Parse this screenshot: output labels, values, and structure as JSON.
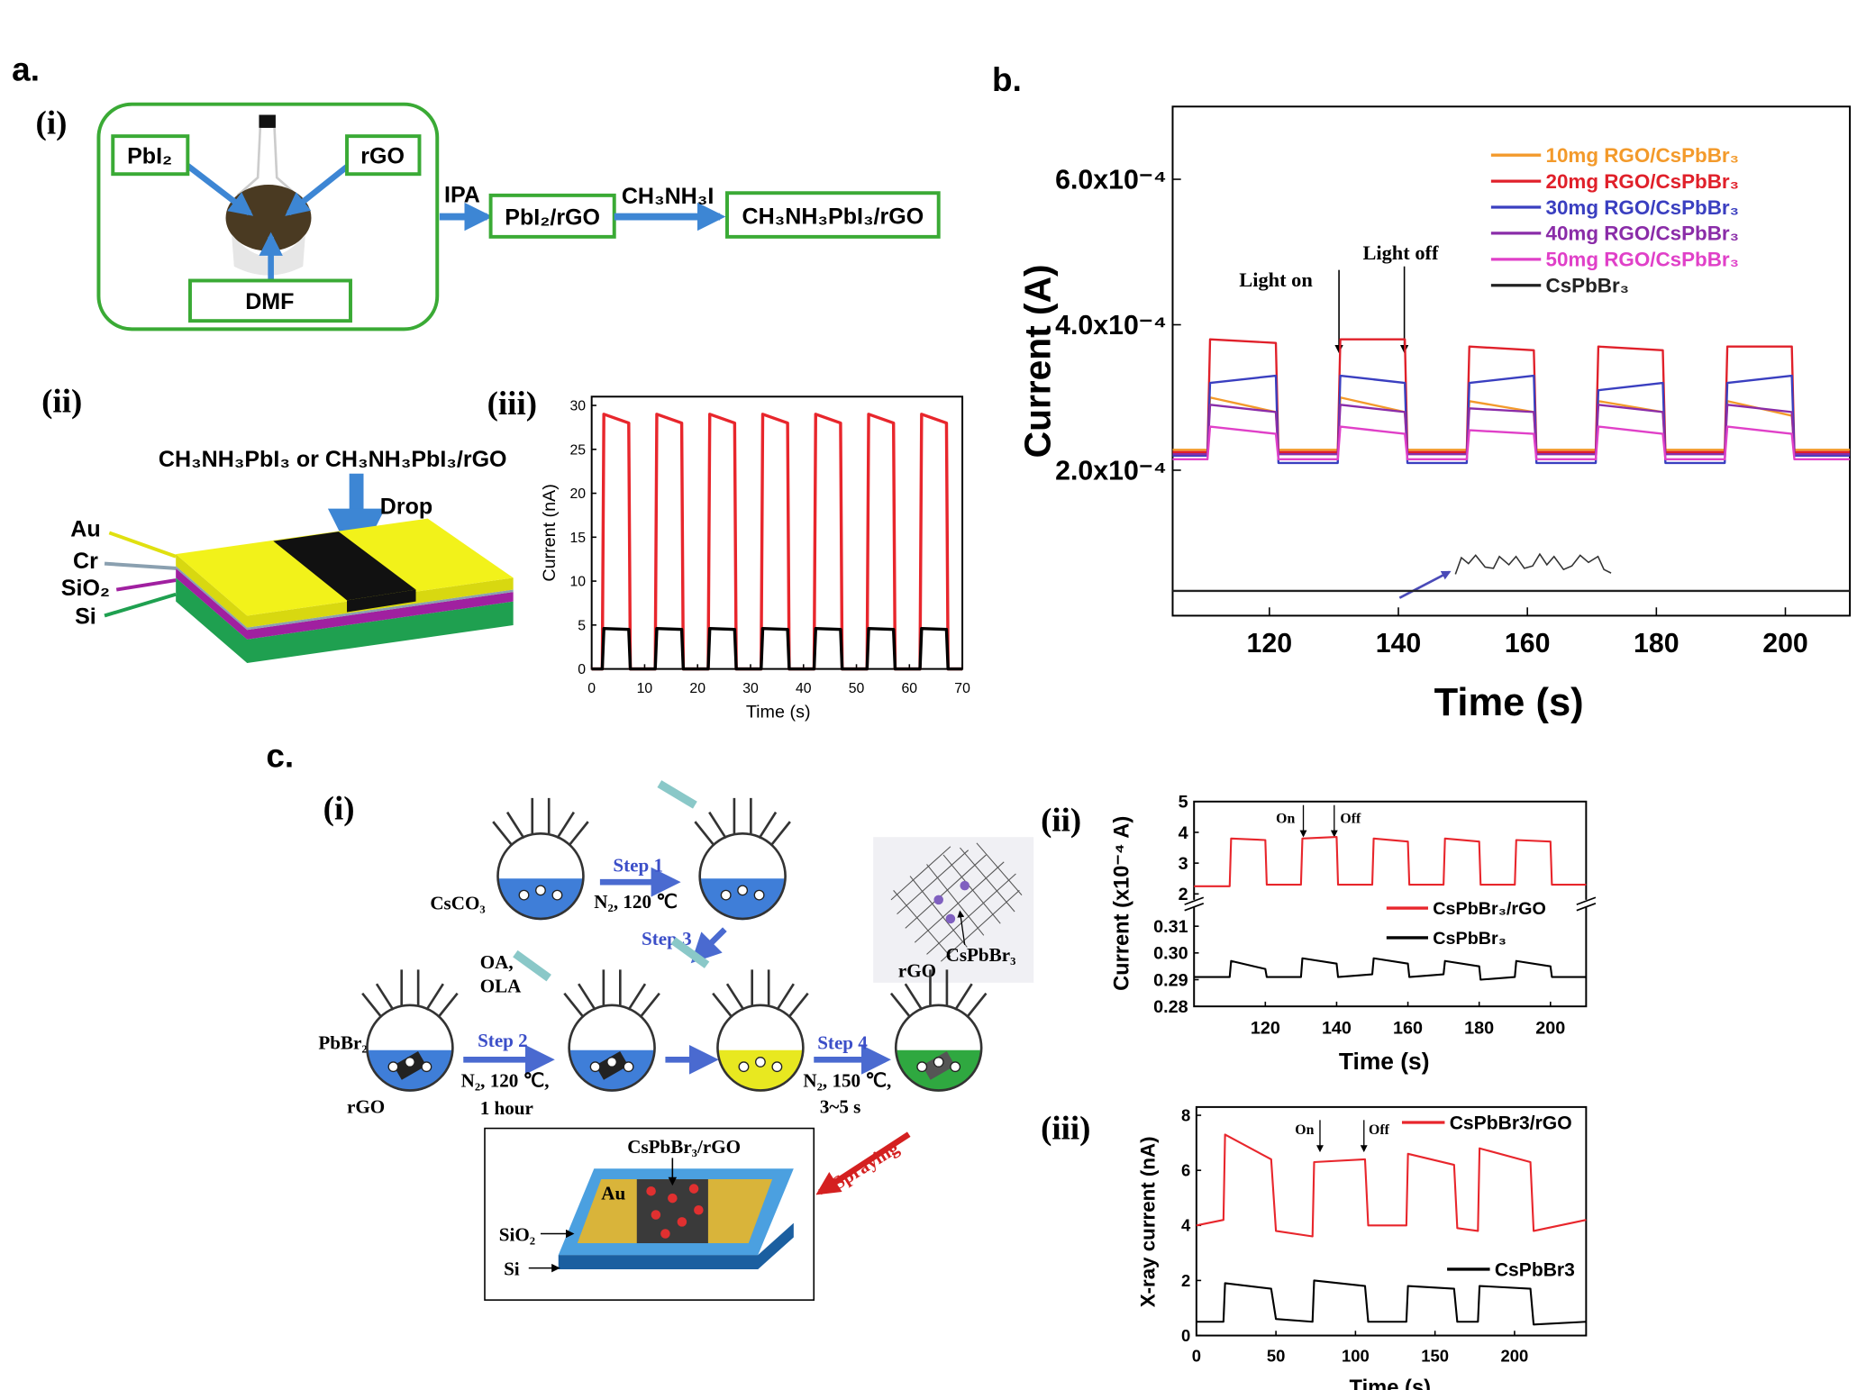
{
  "panel_labels": {
    "a": "a.",
    "b": "b.",
    "c": "c."
  },
  "panel_a": {
    "i_label": "(i)",
    "ii_label": "(ii)",
    "iii_label": "(iii)",
    "scheme": {
      "pbi2": "PbI₂",
      "rgo": "rGO",
      "dmf": "DMF",
      "ipa": "IPA",
      "intermediate": "PbI₂/rGO",
      "reagent": "CH₃NH₃I",
      "product": "CH₃NH₃PbI₃/rGO"
    },
    "device": {
      "caption": "CH₃NH₃PbI₃ or CH₃NH₃PbI₃/rGO",
      "drop": "Drop",
      "layers": [
        "Au",
        "Cr",
        "SiO₂",
        "Si"
      ]
    }
  },
  "panel_c": {
    "i_label": "(i)",
    "ii_label": "(ii)",
    "iii_label": "(iii)",
    "scheme": {
      "cesium": "CsCO₃",
      "step1": "Step 1",
      "step1_cond": "N₂, 120 ℃",
      "step3": "Step 3",
      "ligands": [
        "OA,",
        "OLA"
      ],
      "lead": "PbBr₂",
      "rgo": "rGO",
      "step2": "Step 2",
      "step2_cond": [
        "N₂, 120 ℃,",
        "1 hour"
      ],
      "step4": "Step 4",
      "step4_cond": [
        "N₂, 150 ℃,",
        "3~5 s"
      ],
      "inset": [
        "rGO",
        "CsPbBr₃"
      ],
      "spraying": "Spraying",
      "film": "CsPbBr₃/rGO",
      "layers": [
        "Au",
        "SiO₂",
        "Si"
      ]
    }
  },
  "chart_data": [
    {
      "type": "line",
      "x_label": "Time (s)",
      "y_label": "Current (nA)",
      "x": [
        0,
        2,
        2.3,
        7,
        7.3,
        12,
        12.3,
        17,
        17.3,
        22,
        22.3,
        27,
        27.3,
        32,
        32.3,
        37,
        37.3,
        42,
        42.3,
        47,
        47.3,
        52,
        52.3,
        57,
        57.3,
        62,
        62.3,
        67,
        67.3,
        70
      ],
      "xlim": [
        0,
        70
      ],
      "xticks": [
        0,
        10,
        20,
        30,
        40,
        50,
        60,
        70
      ],
      "ylim": [
        0,
        31
      ],
      "yticks": [
        0,
        5,
        10,
        15,
        20,
        25,
        30
      ],
      "series": [
        {
          "color": "#e8262c",
          "values": [
            0,
            0,
            29,
            28,
            0,
            0,
            29,
            28,
            0,
            0,
            29,
            28,
            0,
            0,
            29,
            28,
            0,
            0,
            29,
            28,
            0,
            0,
            29,
            28,
            0,
            0,
            29,
            28,
            0,
            0
          ]
        },
        {
          "color": "#000000",
          "values": [
            0,
            0,
            4.6,
            4.5,
            0,
            0,
            4.6,
            4.5,
            0,
            0,
            4.6,
            4.5,
            0,
            0,
            4.6,
            4.5,
            0,
            0,
            4.6,
            4.5,
            0,
            0,
            4.6,
            4.5,
            0,
            0,
            4.6,
            4.5,
            0,
            0
          ]
        }
      ]
    },
    {
      "type": "line",
      "x_label": "Time (s)",
      "y_label": "Current (A)",
      "x": [
        105,
        110.4,
        110.8,
        121,
        121.4,
        130.6,
        131,
        141,
        141.4,
        150.6,
        151,
        161,
        161.4,
        170.6,
        171,
        181,
        181.4,
        190.6,
        191,
        201,
        201.4,
        210
      ],
      "xlim": [
        105,
        210
      ],
      "xticks": [
        120,
        140,
        160,
        180,
        200
      ],
      "ylim": [
        0,
        0.0007
      ],
      "yticks": [
        {
          "value": 0.0002,
          "label": "2.0x10⁻⁴"
        },
        {
          "value": 0.0004,
          "label": "4.0x10⁻⁴"
        },
        {
          "value": 0.0006,
          "label": "6.0x10⁻⁴"
        }
      ],
      "annotations": [
        "Light on",
        "Light off"
      ],
      "series": [
        {
          "name": "10mg RGO/CsPbBr₃",
          "color": "#f39a2b",
          "values": [
            0.000228,
            0.000228,
            0.0003,
            0.00028,
            0.000228,
            0.000228,
            0.0003,
            0.00028,
            0.000228,
            0.000228,
            0.000295,
            0.00028,
            0.000228,
            0.000228,
            0.000295,
            0.00028,
            0.000228,
            0.000228,
            0.000295,
            0.000275,
            0.000228,
            0.000228
          ]
        },
        {
          "name": "20mg RGO/CsPbBr₃",
          "color": "#e0202a",
          "values": [
            0.000225,
            0.000225,
            0.00038,
            0.000375,
            0.000225,
            0.000225,
            0.00038,
            0.00038,
            0.000225,
            0.000225,
            0.00037,
            0.000365,
            0.000225,
            0.000225,
            0.00037,
            0.000365,
            0.000225,
            0.000225,
            0.00037,
            0.00037,
            0.000225,
            0.000225
          ]
        },
        {
          "name": "30mg RGO/CsPbBr₃",
          "color": "#3a3fc0",
          "values": [
            0.00022,
            0.00022,
            0.00032,
            0.00033,
            0.00021,
            0.00021,
            0.00033,
            0.00032,
            0.00021,
            0.00021,
            0.00032,
            0.00033,
            0.00021,
            0.00021,
            0.00031,
            0.00032,
            0.00021,
            0.00021,
            0.00032,
            0.00033,
            0.00022,
            0.00022
          ]
        },
        {
          "name": "40mg RGO/CsPbBr₃",
          "color": "#8a2ca8",
          "values": [
            0.000222,
            0.000222,
            0.00029,
            0.00028,
            0.000222,
            0.000222,
            0.00029,
            0.00028,
            0.000222,
            0.000222,
            0.000285,
            0.00028,
            0.000222,
            0.000222,
            0.00029,
            0.00028,
            0.000222,
            0.000222,
            0.00029,
            0.00028,
            0.000222,
            0.000222
          ]
        },
        {
          "name": "50mg RGO/CsPbBr₃",
          "color": "#e040c8",
          "values": [
            0.000215,
            0.000215,
            0.00026,
            0.00025,
            0.000215,
            0.000215,
            0.00026,
            0.00025,
            0.000215,
            0.000215,
            0.000255,
            0.00025,
            0.000215,
            0.000215,
            0.00026,
            0.00025,
            0.000215,
            0.000215,
            0.00026,
            0.00025,
            0.000215,
            0.000215
          ]
        },
        {
          "name": "CsPbBr₃",
          "color": "#222222",
          "values": [
            3.4e-05,
            3.4e-05,
            3.4e-05,
            3.4e-05,
            3.4e-05,
            3.4e-05,
            3.4e-05,
            3.4e-05,
            3.4e-05,
            3.4e-05,
            3.4e-05,
            3.4e-05,
            3.4e-05,
            3.4e-05,
            3.4e-05,
            3.4e-05,
            3.4e-05,
            3.4e-05,
            3.4e-05,
            3.4e-05,
            3.4e-05,
            3.4e-05
          ]
        }
      ]
    },
    {
      "type": "broken-line",
      "x_label": "Time (s)",
      "y_label": "Current (x10⁻⁴ A)",
      "x": [
        100,
        110,
        110.4,
        120,
        120.4,
        130,
        130.4,
        140,
        140.4,
        150,
        150.4,
        160,
        160.4,
        170,
        170.4,
        180,
        180.4,
        190,
        190.4,
        200,
        200.4,
        210
      ],
      "xlim": [
        100,
        210
      ],
      "xticks": [
        120,
        140,
        160,
        180,
        200
      ],
      "upper": {
        "ylim": [
          2,
          5
        ],
        "yticks": [
          2,
          3,
          4,
          5
        ]
      },
      "lower": {
        "ylim": [
          0.28,
          0.315
        ],
        "yticks": [
          0.28,
          0.29,
          {
            "value": 0.3,
            "label": "0.30"
          },
          0.31
        ]
      },
      "annotations": [
        "On",
        "Off"
      ],
      "series": [
        {
          "name": "CsPbBr₃/rGO",
          "color": "#e8262c",
          "axis": "upper",
          "values": [
            2.25,
            2.25,
            3.8,
            3.75,
            2.3,
            2.3,
            3.8,
            3.85,
            2.3,
            2.3,
            3.8,
            3.7,
            2.3,
            2.3,
            3.8,
            3.7,
            2.3,
            2.3,
            3.75,
            3.7,
            2.3,
            2.3
          ]
        },
        {
          "name": "CsPbBr₃",
          "color": "#000000",
          "axis": "lower",
          "values": [
            0.291,
            0.291,
            0.297,
            0.294,
            0.291,
            0.291,
            0.298,
            0.296,
            0.291,
            0.292,
            0.298,
            0.296,
            0.291,
            0.292,
            0.297,
            0.295,
            0.29,
            0.291,
            0.297,
            0.295,
            0.291,
            0.291
          ]
        }
      ]
    },
    {
      "type": "line",
      "x_label": "Time (s)",
      "y_label": "X-ray current (nA)",
      "x": [
        0,
        17,
        18,
        47,
        50,
        73,
        74,
        106,
        108,
        132,
        133,
        162,
        164,
        177,
        178,
        210,
        212,
        245
      ],
      "xlim": [
        0,
        245
      ],
      "xticks": [
        0,
        50,
        100,
        150,
        200
      ],
      "ylim": [
        0,
        8.3
      ],
      "yticks": [
        0,
        2,
        4,
        6,
        8
      ],
      "annotations": [
        "On",
        "Off"
      ],
      "series": [
        {
          "name": "CsPbBr3/rGO",
          "color": "#e8262c",
          "values": [
            4,
            4.2,
            7.3,
            6.4,
            3.8,
            3.6,
            6.3,
            6.4,
            4,
            4,
            6.6,
            6.2,
            3.9,
            3.8,
            6.8,
            6.3,
            3.8,
            4.2
          ]
        },
        {
          "name": "CsPbBr3",
          "color": "#000000",
          "values": [
            0.5,
            0.5,
            1.9,
            1.7,
            0.6,
            0.5,
            2,
            1.8,
            0.5,
            0.5,
            1.8,
            1.7,
            0.5,
            0.5,
            1.8,
            1.7,
            0.4,
            0.5
          ]
        }
      ]
    }
  ]
}
